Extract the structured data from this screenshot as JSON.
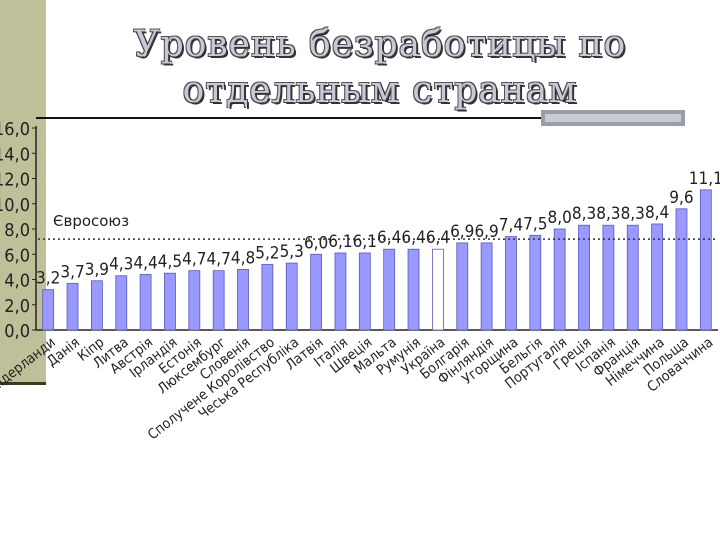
{
  "title": {
    "line1": "Уровень безработицы по",
    "line2": "отдельным странам"
  },
  "colors": {
    "bar_fill": "#9999ff",
    "bar_stroke": "#5a5ab8",
    "highlight_fill": "#ffffff",
    "reference_line": "#333333",
    "band": "#bfc09a"
  },
  "chart_data": {
    "type": "bar",
    "ylim": [
      0,
      16
    ],
    "yticks": [
      "0,0",
      "2,0",
      "4,0",
      "6,0",
      "8,0",
      "10,0",
      "12,0",
      "14,0",
      "16,0"
    ],
    "grid": false,
    "categories": [
      "Нідерланди",
      "Данія",
      "Кіпр",
      "Литва",
      "Австрія",
      "Ірландія",
      "Естонія",
      "Люксембург",
      "Словенія",
      "Сполучене Королівство",
      "Чеська Республіка",
      "Латвія",
      "Італія",
      "Швеція",
      "Мальта",
      "Румунія",
      "Україна",
      "Болгарія",
      "Фінляндія",
      "Угорщина",
      "Бельгія",
      "Португалія",
      "Греція",
      "Іспанія",
      "Франція",
      "Німеччина",
      "Польща",
      "Словаччина"
    ],
    "values": [
      3.2,
      3.7,
      3.9,
      4.3,
      4.4,
      4.5,
      4.7,
      4.7,
      4.8,
      5.2,
      5.3,
      6.0,
      6.1,
      6.1,
      6.4,
      6.4,
      6.4,
      6.9,
      6.9,
      7.4,
      7.5,
      8.0,
      8.3,
      8.3,
      8.3,
      8.4,
      9.6,
      11.1
    ],
    "data_labels": [
      "3,2",
      "3,7",
      "3,9",
      "4,3",
      "4,4",
      "4,5",
      "4,7",
      "4,7",
      "4,8",
      "5,2",
      "5,3",
      "6,0",
      "6,1",
      "6,1",
      "6,4",
      "6,4",
      "6,4",
      "6,9",
      "6,9",
      "7,4",
      "7,5",
      "8,0",
      "8,3",
      "8,3",
      "8,3",
      "8,4",
      "9,6",
      "11,1"
    ],
    "highlight_category": "Україна",
    "reference_line": {
      "label": "Євросоюз",
      "value": 7.2
    }
  }
}
